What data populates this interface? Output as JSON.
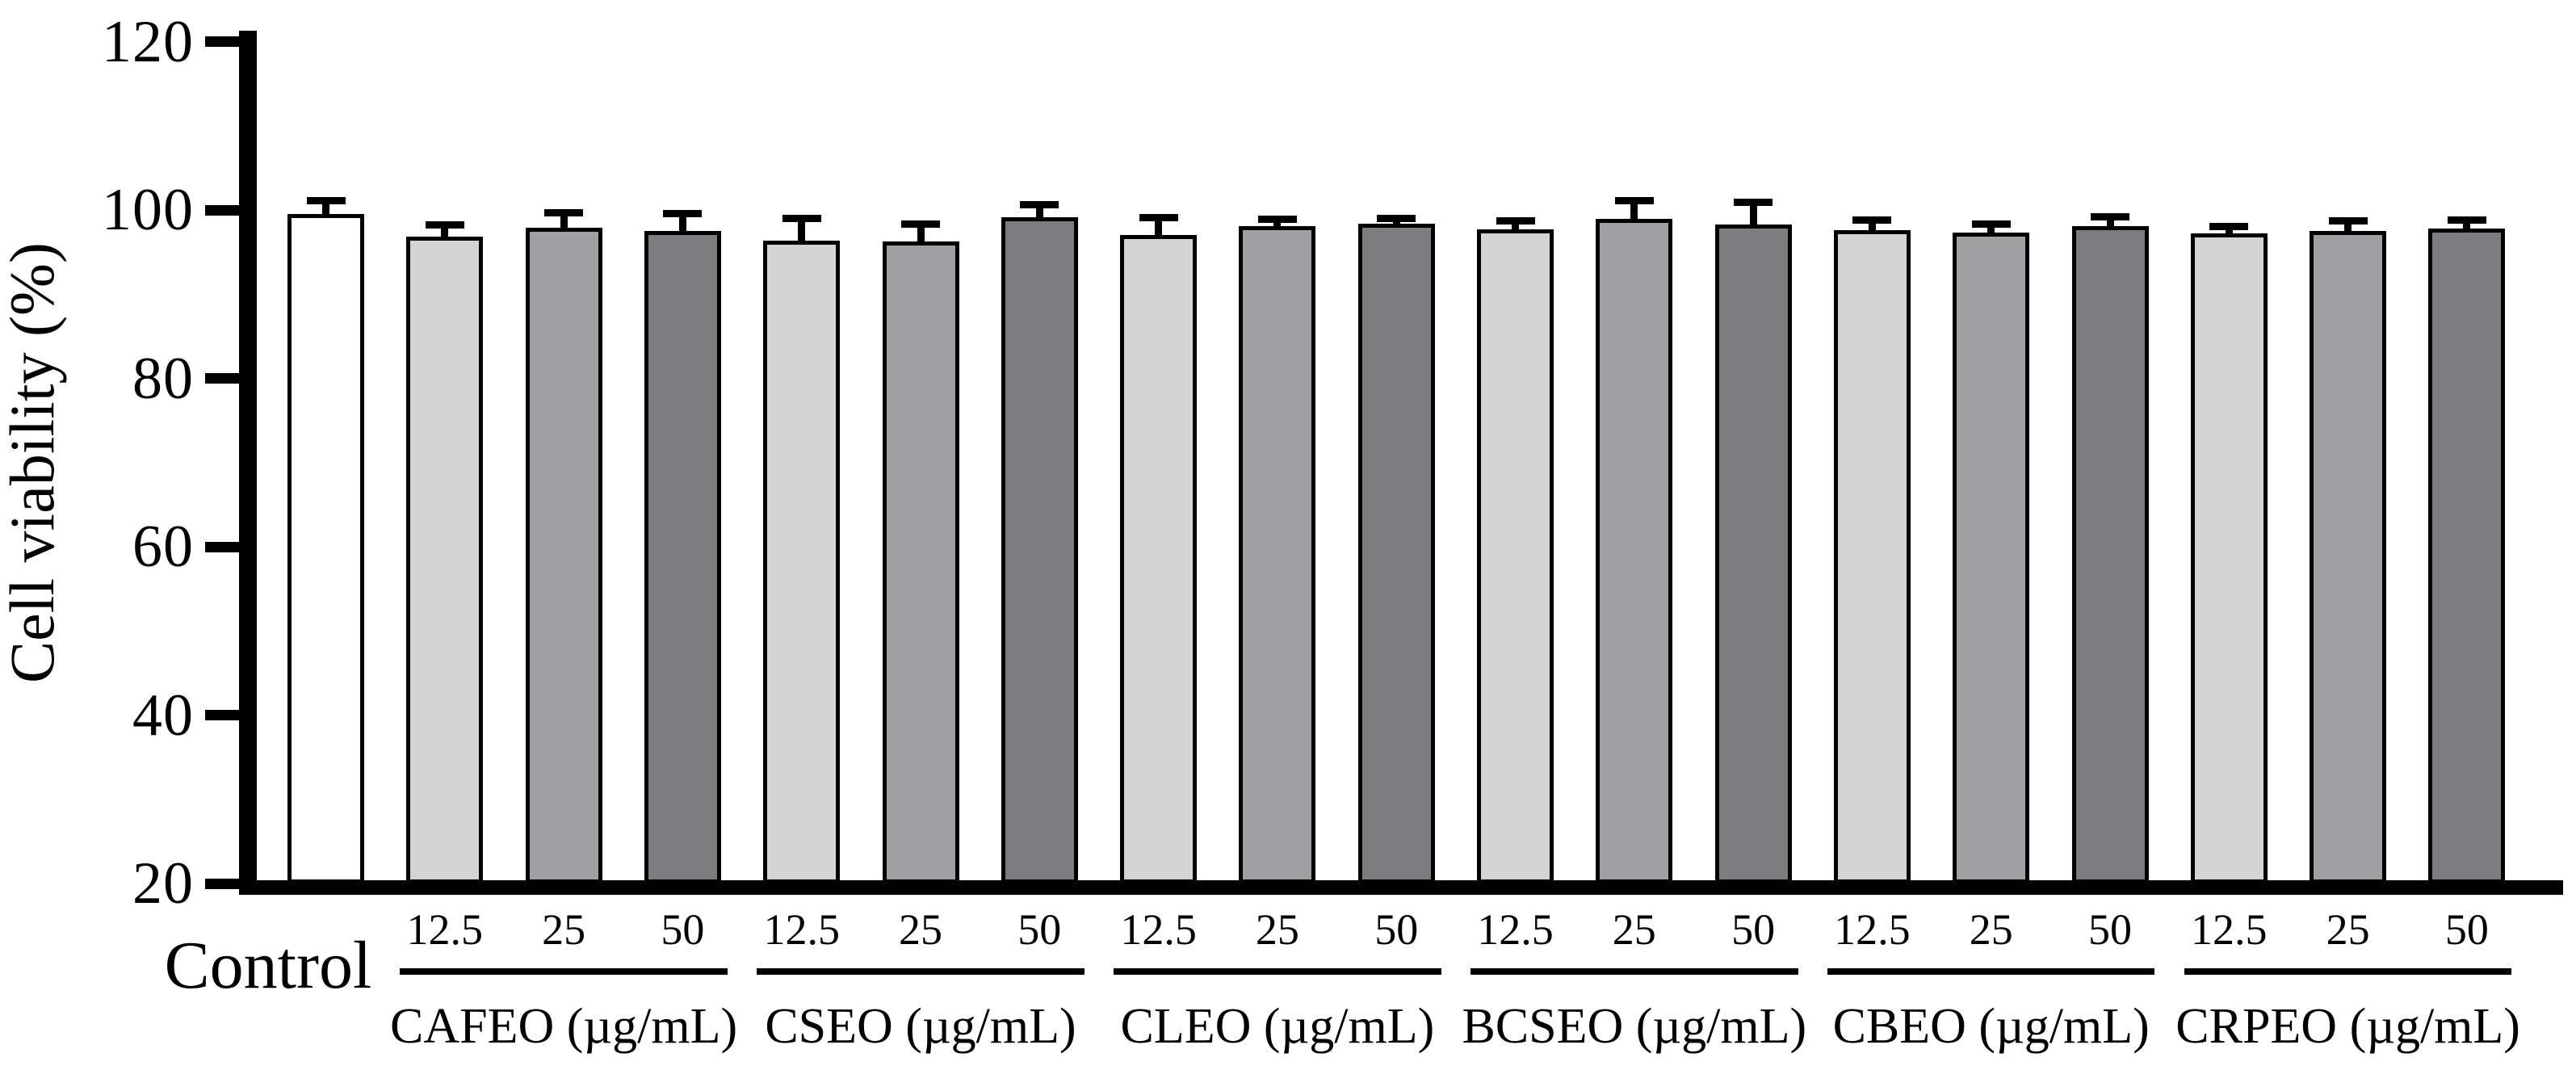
{
  "chart_data": {
    "type": "bar",
    "title": "",
    "xlabel": "",
    "ylabel": "Cell viability (%)",
    "ylim": [
      20,
      120
    ],
    "yticks": [
      20,
      40,
      60,
      80,
      100,
      120
    ],
    "grid": false,
    "legend": "none",
    "error_bars": "upper T-caps, black",
    "bar_outline_color": "#000000",
    "control": {
      "label": "Control",
      "value": 99.5,
      "error": 1.6,
      "color": "#ffffff"
    },
    "dose_labels": [
      "12.5",
      "25",
      "50"
    ],
    "dose_colors": [
      "#d4d4d4",
      "#a0a0a3",
      "#7d7d80"
    ],
    "groups": [
      {
        "name": "CAFEO (µg/mL)",
        "values": [
          96.8,
          97.9,
          97.5
        ],
        "errors": [
          1.4,
          1.8,
          2.1
        ]
      },
      {
        "name": "CSEO (µg/mL)",
        "values": [
          96.4,
          96.3,
          99.1
        ],
        "errors": [
          2.6,
          2.0,
          1.5
        ]
      },
      {
        "name": "CLEO (µg/mL)",
        "values": [
          97.0,
          98.1,
          98.4
        ],
        "errors": [
          2.1,
          0.8,
          0.6
        ]
      },
      {
        "name": "BCSEO (µg/mL)",
        "values": [
          97.7,
          98.9,
          98.3
        ],
        "errors": [
          1.0,
          2.2,
          2.6
        ]
      },
      {
        "name": "CBEO (µg/mL)",
        "values": [
          97.6,
          97.3,
          98.1
        ],
        "errors": [
          1.2,
          1.0,
          1.1
        ]
      },
      {
        "name": "CRPEO (µg/mL)",
        "values": [
          97.2,
          97.5,
          97.8
        ],
        "errors": [
          0.8,
          1.2,
          1.0
        ]
      }
    ]
  }
}
